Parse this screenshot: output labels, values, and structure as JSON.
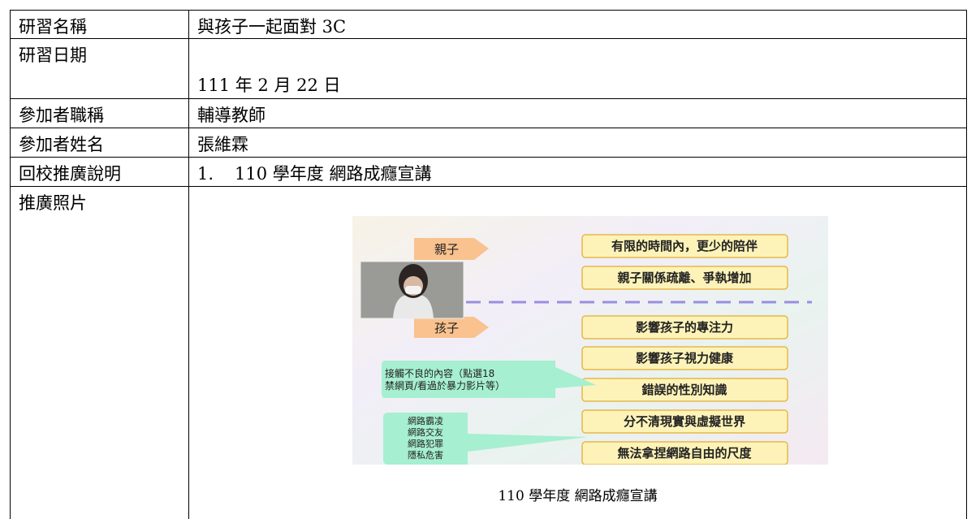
{
  "table": {
    "rows": [
      {
        "label": "研習名稱",
        "value": "與孩子一起面對 3C"
      },
      {
        "label": "研習日期",
        "value": "111 年 2 月 22 日"
      },
      {
        "label": "參加者職稱",
        "value": "輔導教師"
      },
      {
        "label": "參加者姓名",
        "value": "張維霖"
      },
      {
        "label": "回校推廣說明",
        "number": "1.",
        "value": "110 學年度 網路成癮宣講"
      },
      {
        "label": "推廣照片",
        "caption": "110 學年度 網路成癮宣講"
      }
    ]
  },
  "slide": {
    "tags": [
      "親子",
      "孩子"
    ],
    "boxes": [
      "有限的時間內，更少的陪伴",
      "親子關係疏離、爭執增加",
      "影響孩子的專注力",
      "影響孩子視力健康",
      "錯誤的性別知識",
      "分不清現實與虛擬世界",
      "無法拿捏網路自由的尺度"
    ],
    "bubble1": [
      "接觸不良的內容（點選18",
      "禁網頁/看過於暴力影片等）"
    ],
    "bubble2": [
      "網路霸凌",
      "網路交友",
      "網路犯罪",
      "隱私危害"
    ]
  }
}
